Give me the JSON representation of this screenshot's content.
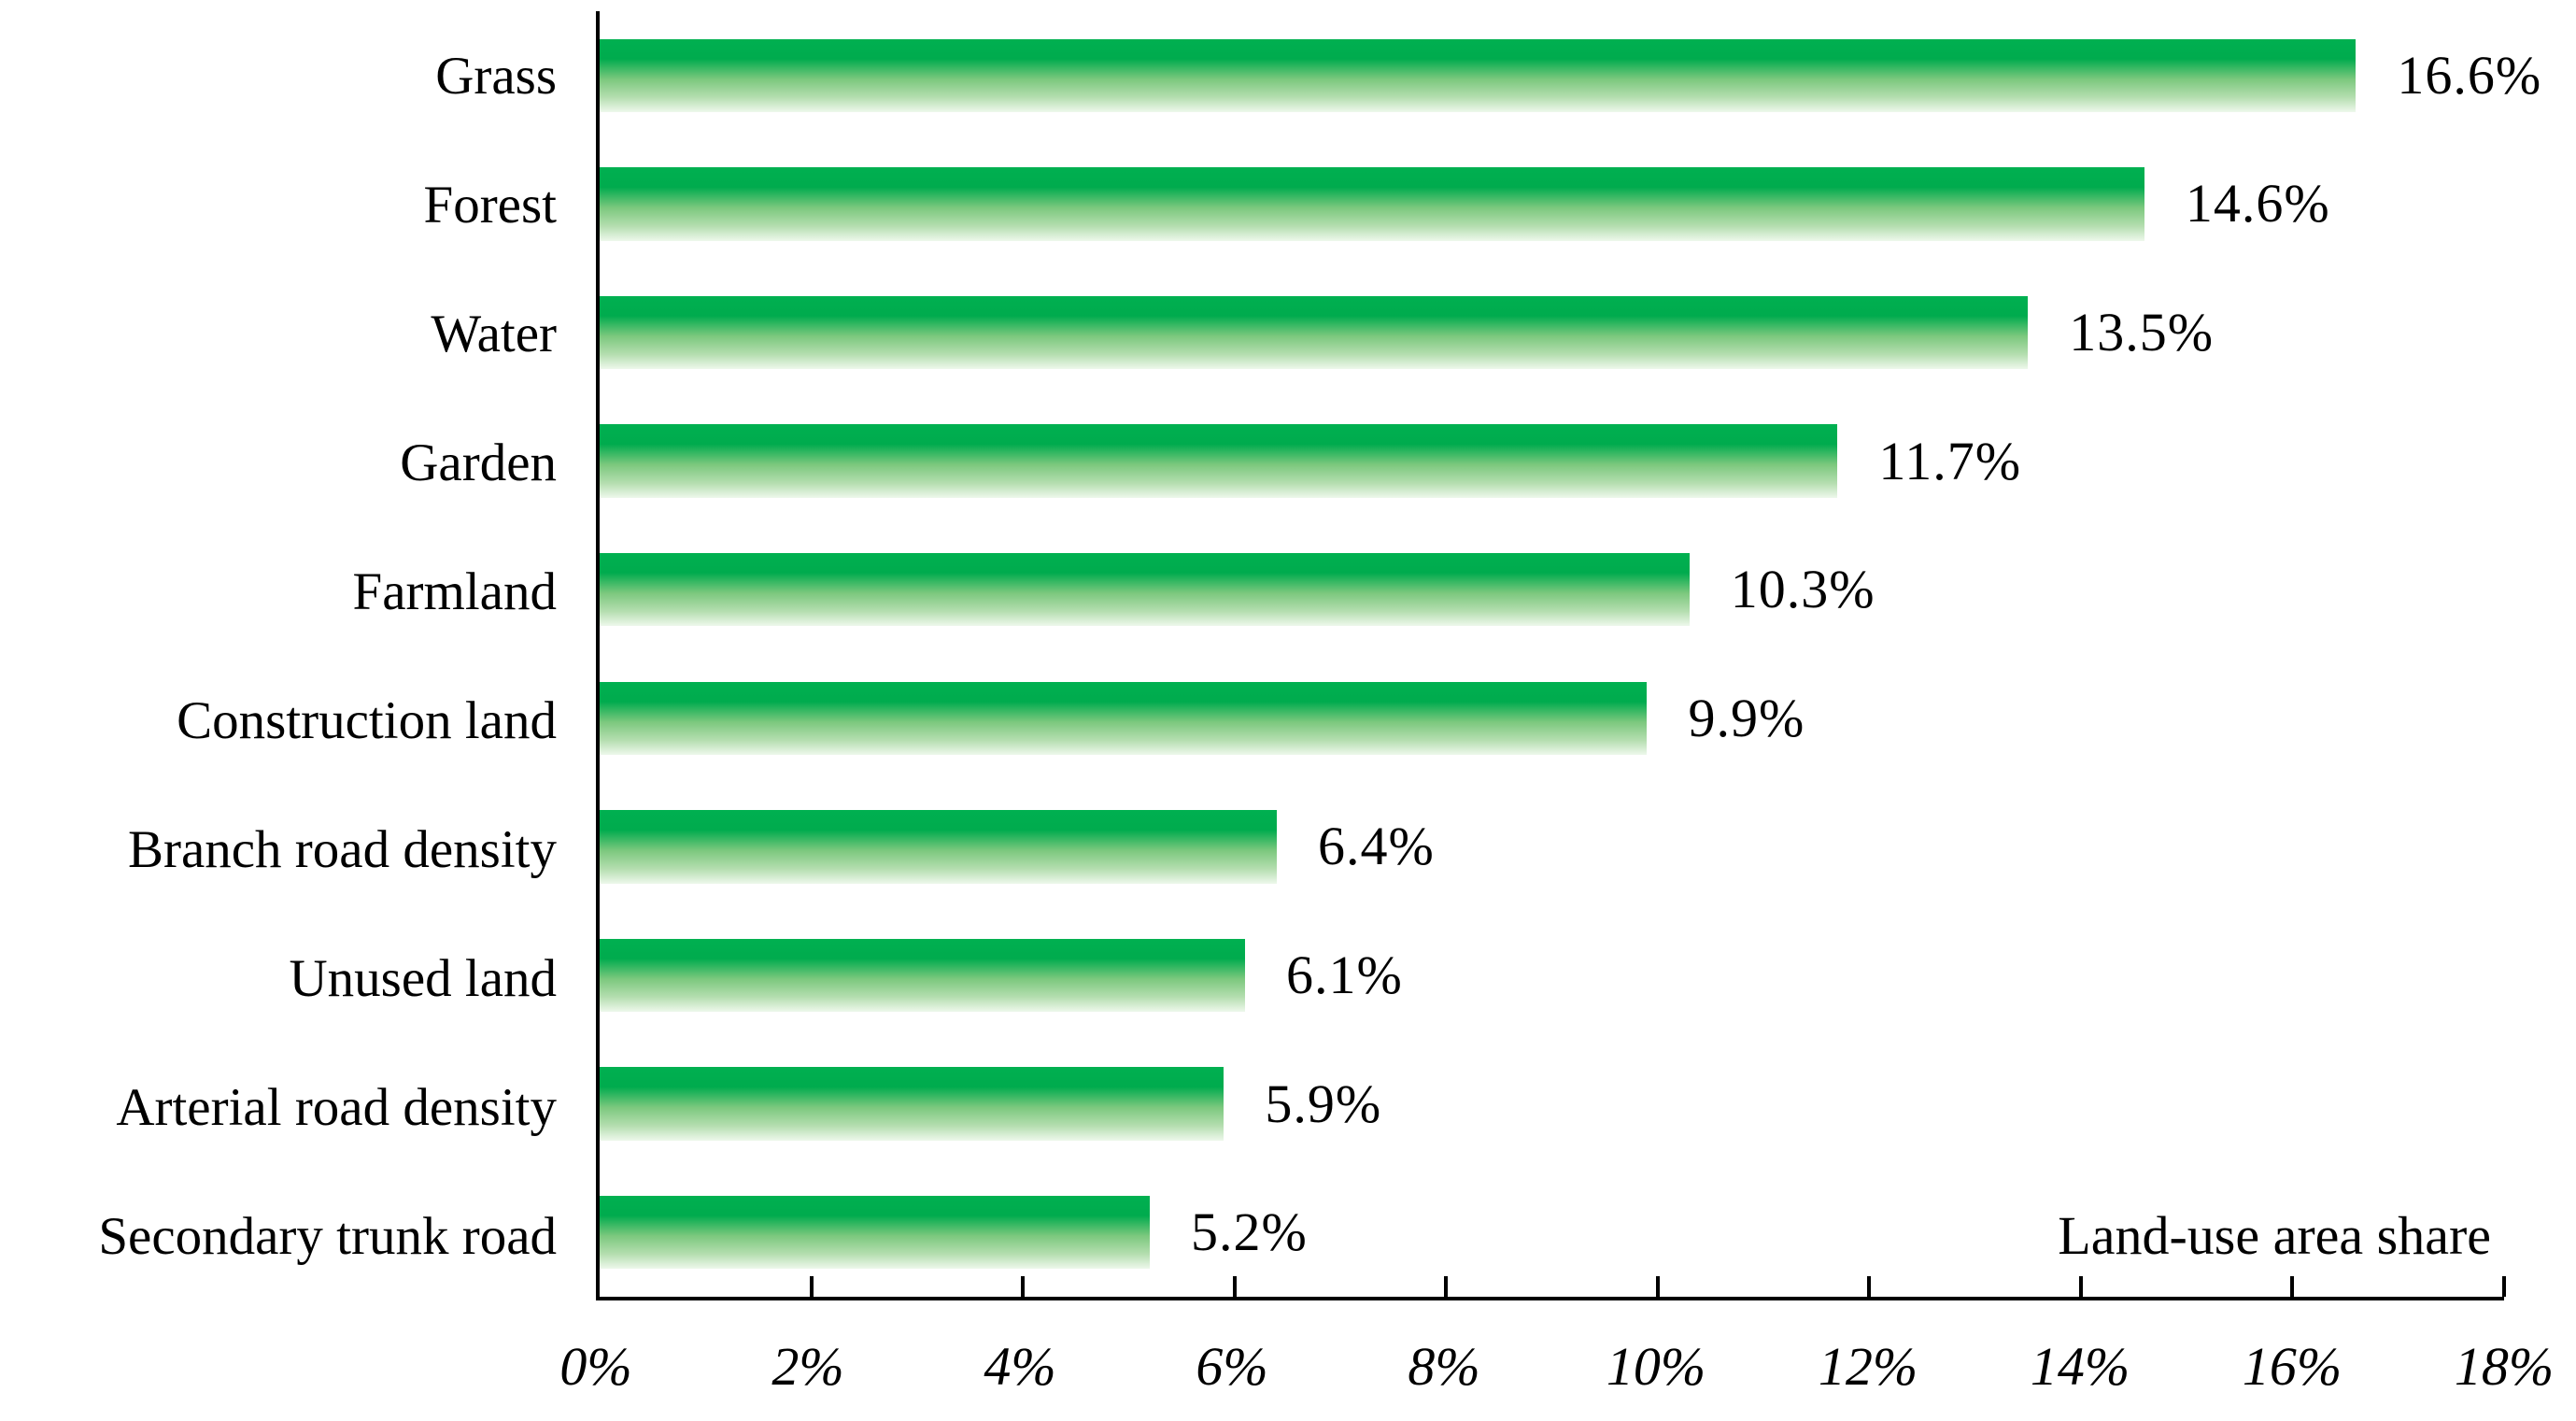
{
  "chart_data": {
    "type": "bar",
    "orientation": "horizontal",
    "title": "",
    "series_label": "Land-use area share",
    "categories": [
      "Grass",
      "Forest",
      "Water",
      "Garden",
      "Farmland",
      "Construction land",
      "Branch road density",
      "Unused land",
      "Arterial road density",
      "Secondary trunk road"
    ],
    "values": [
      16.6,
      14.6,
      13.5,
      11.7,
      10.3,
      9.9,
      6.4,
      6.1,
      5.9,
      5.2
    ],
    "value_labels": [
      "16.6%",
      "14.6%",
      "13.5%",
      "11.7%",
      "10.3%",
      "9.9%",
      "6.4%",
      "6.1%",
      "5.9%",
      "5.2%"
    ],
    "x_ticks": [
      "0%",
      "2%",
      "4%",
      "6%",
      "8%",
      "10%",
      "12%",
      "14%",
      "16%",
      "18%"
    ],
    "xlim": [
      0,
      18
    ],
    "grid": "off",
    "bar_gradient": {
      "top": "#00b050",
      "upper_solid": "#00ab4e",
      "mid": "#7cc87e",
      "lower": "#b5deb0",
      "bottom": "#eef8ec"
    },
    "axis_color": "#000000",
    "text_color": "#000000"
  }
}
